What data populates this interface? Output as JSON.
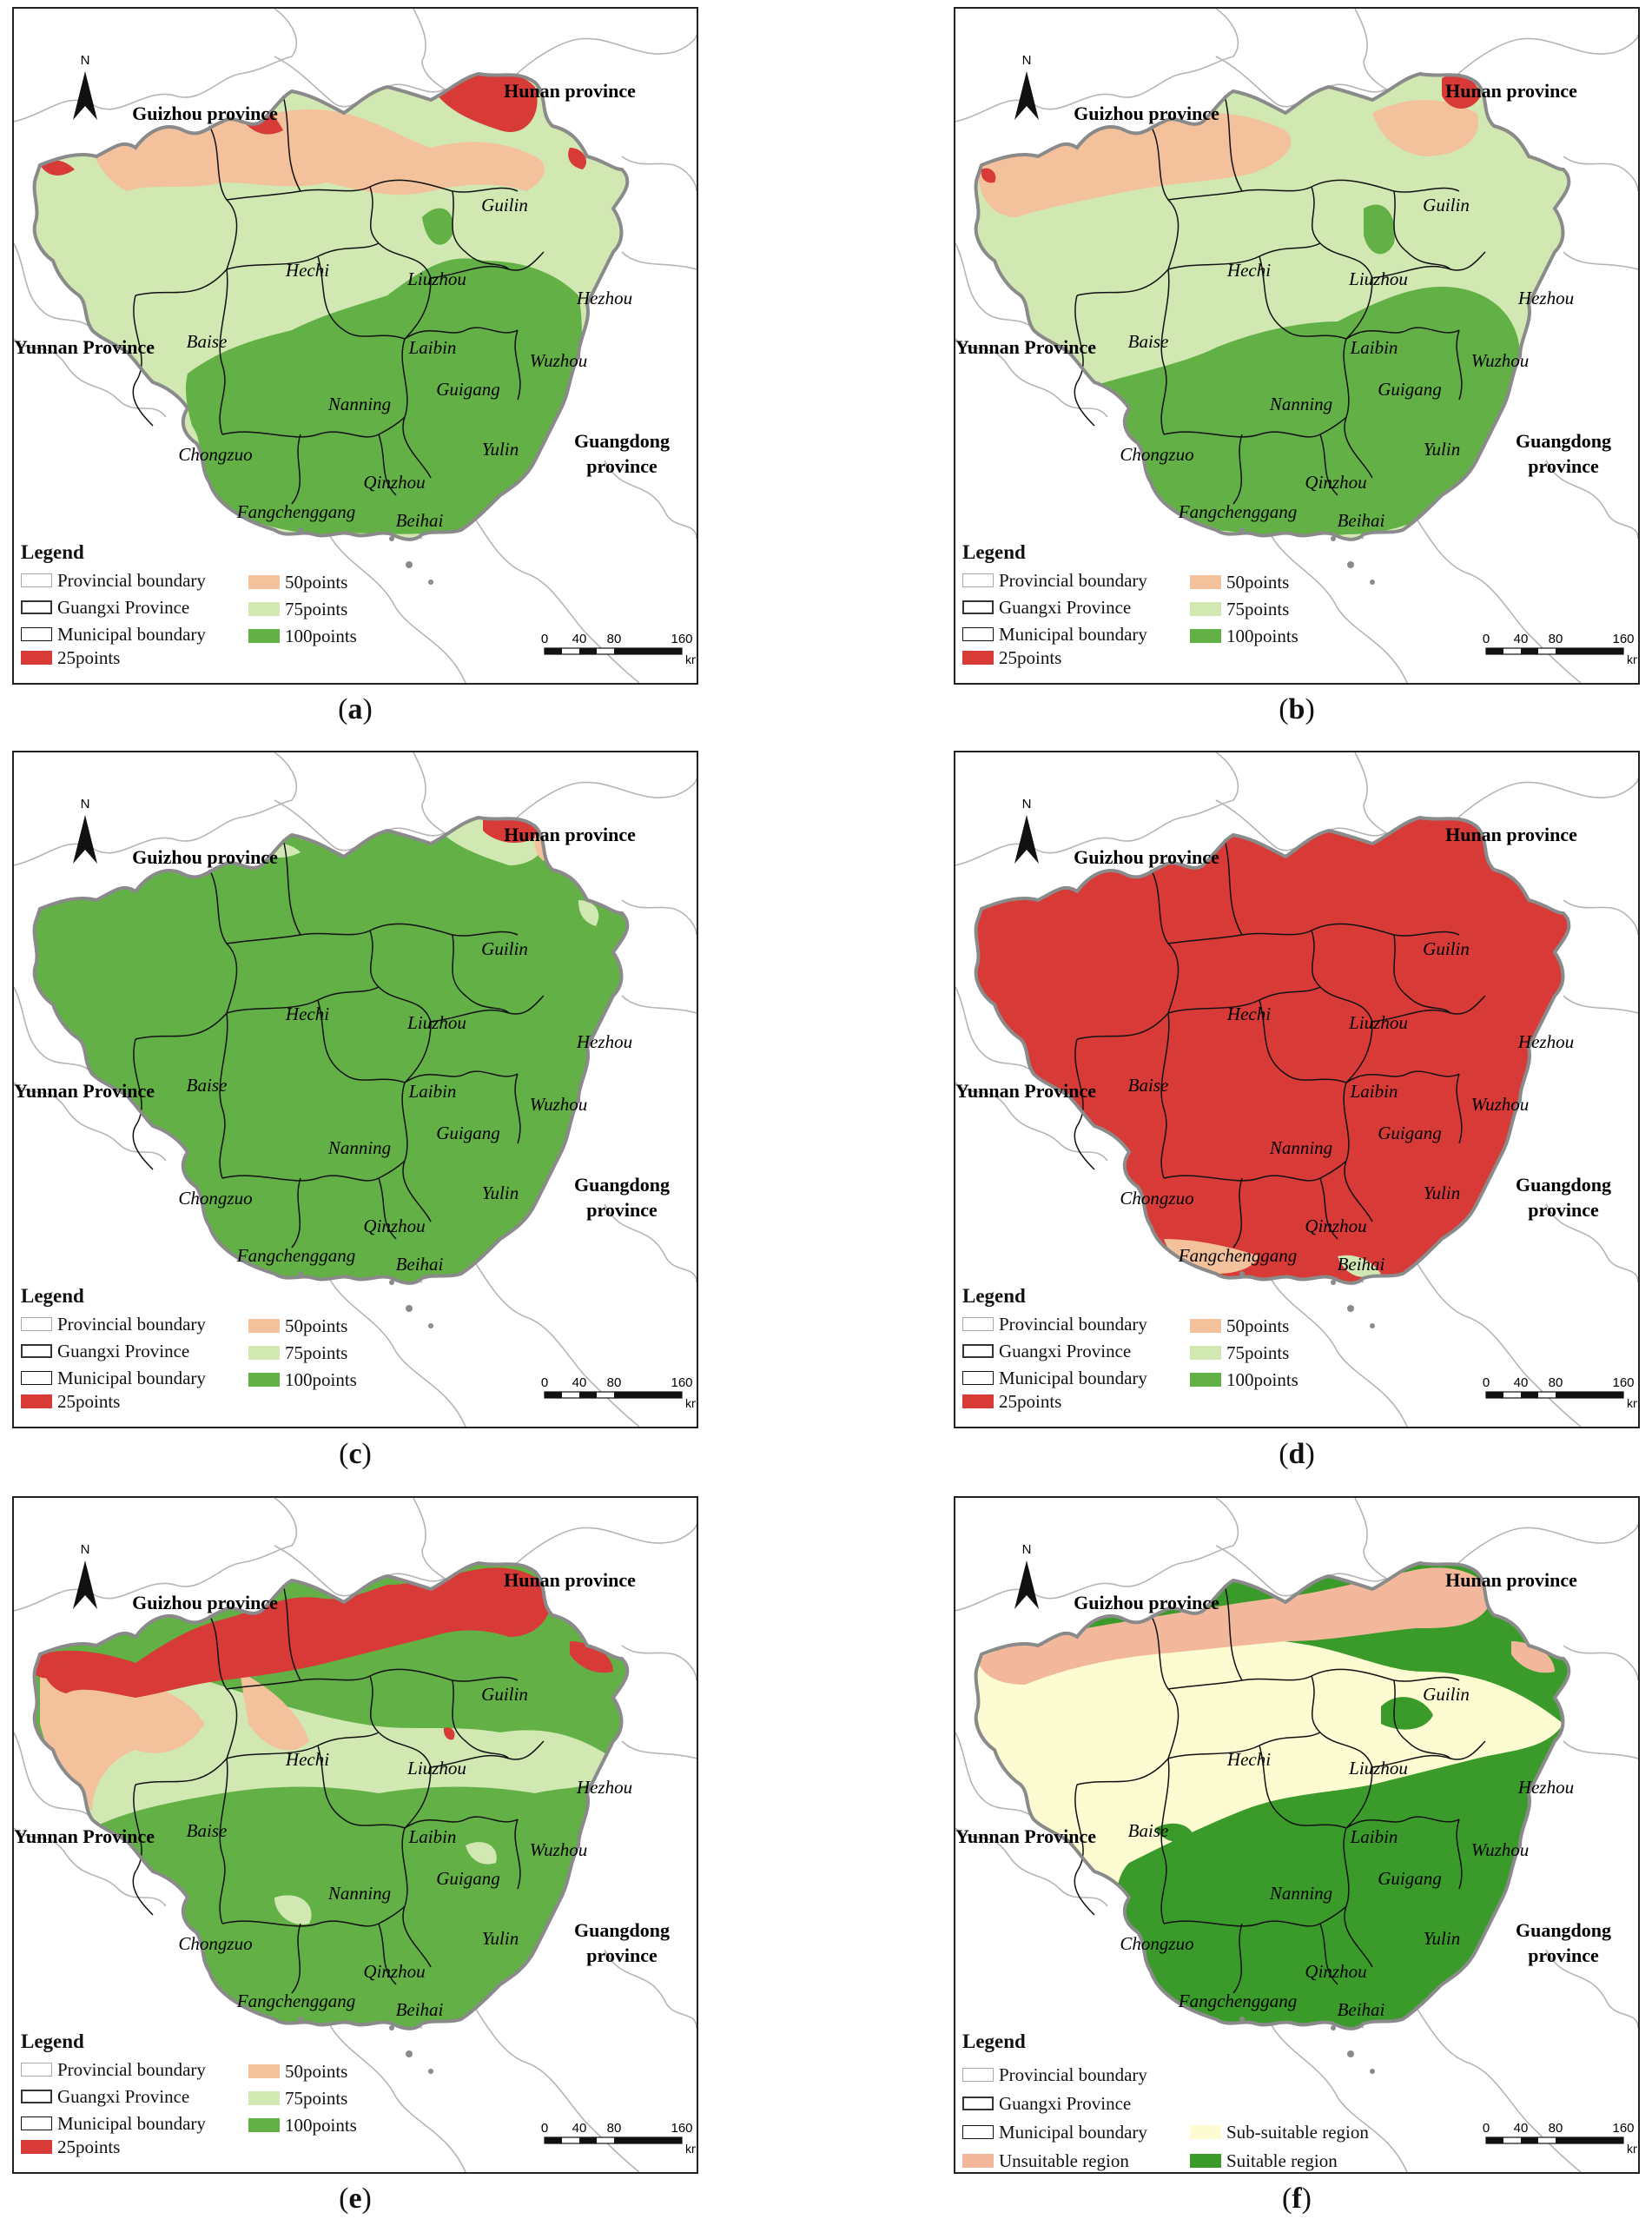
{
  "panels": [
    {
      "id": "a",
      "caption": "a",
      "variant": "a",
      "legend_title": "Legend",
      "boundary_labels": [
        "Provincial boundary",
        "Guangxi Province",
        "Municipal boundary"
      ],
      "classes": [
        {
          "label": "25points",
          "color": "#d73a37"
        },
        {
          "label": "50points",
          "color": "#f3c19b"
        },
        {
          "label": "75points",
          "color": "#d1e8b3"
        },
        {
          "label": "100points",
          "color": "#63b046"
        }
      ]
    },
    {
      "id": "b",
      "caption": "b",
      "variant": "b",
      "legend_title": "Legend",
      "boundary_labels": [
        "Provincial boundary",
        "Guangxi Province",
        "Municipal boundary"
      ],
      "classes": [
        {
          "label": "25points",
          "color": "#d73a37"
        },
        {
          "label": "50points",
          "color": "#f3c19b"
        },
        {
          "label": "75points",
          "color": "#d1e8b3"
        },
        {
          "label": "100points",
          "color": "#63b046"
        }
      ]
    },
    {
      "id": "c",
      "caption": "c",
      "variant": "c",
      "legend_title": "Legend",
      "boundary_labels": [
        "Provincial boundary",
        "Guangxi Province",
        "Municipal boundary"
      ],
      "classes": [
        {
          "label": "25points",
          "color": "#d73a37"
        },
        {
          "label": "50points",
          "color": "#f3c19b"
        },
        {
          "label": "75points",
          "color": "#d1e8b3"
        },
        {
          "label": "100points",
          "color": "#63b046"
        }
      ]
    },
    {
      "id": "d",
      "caption": "d",
      "variant": "d",
      "legend_title": "Legend",
      "boundary_labels": [
        "Provincial boundary",
        "Guangxi Province",
        "Municipal boundary"
      ],
      "classes": [
        {
          "label": "25points",
          "color": "#d73a37"
        },
        {
          "label": "50points",
          "color": "#f3c19b"
        },
        {
          "label": "75points",
          "color": "#d1e8b3"
        },
        {
          "label": "100points",
          "color": "#63b046"
        }
      ]
    },
    {
      "id": "e",
      "caption": "e",
      "variant": "e",
      "legend_title": "Legend",
      "boundary_labels": [
        "Provincial boundary",
        "Guangxi Province",
        "Municipal boundary"
      ],
      "classes": [
        {
          "label": "25points",
          "color": "#d73a37"
        },
        {
          "label": "50points",
          "color": "#f3c19b"
        },
        {
          "label": "75points",
          "color": "#d1e8b3"
        },
        {
          "label": "100points",
          "color": "#63b046"
        }
      ]
    },
    {
      "id": "f",
      "caption": "f",
      "variant": "f",
      "legend_title": "Legend",
      "boundary_labels": [
        "Provincial boundary",
        "Guangxi Province",
        "Municipal boundary"
      ],
      "classes": [
        {
          "label": "Unsuitable region",
          "color": "#f3b89b"
        },
        {
          "label": "Sub-suitable region",
          "color": "#fdfbd2"
        },
        {
          "label": "Suitable region",
          "color": "#3a9a2a"
        }
      ]
    }
  ],
  "map_labels": {
    "provinces": {
      "guizhou": "Guizhou province",
      "hunan": "Hunan province",
      "yunnan": "Yunnan Province",
      "guangdong": "Guangdong",
      "guangdong2": "province"
    },
    "cities": {
      "guilin": "Guilin",
      "hechi": "Hechi",
      "liuzhou": "Liuzhou",
      "hezhou": "Hezhou",
      "baise": "Baise",
      "laibin": "Laibin",
      "wuzhou": "Wuzhou",
      "guigang": "Guigang",
      "nanning": "Nanning",
      "yulin": "Yulin",
      "chongzuo": "Chongzuo",
      "qinzhou": "Qinzhou",
      "fangchenggang": "Fangchenggang",
      "beihai": "Beihai"
    }
  },
  "north_label": "N",
  "scale": {
    "ticks": [
      "0",
      "40",
      "80",
      "160"
    ],
    "unit": "km"
  },
  "colors": {
    "red": "#d73a37",
    "peach": "#f3c19b",
    "lightgreen": "#d1e8b3",
    "green": "#63b046",
    "darkgreen": "#3a9a2a",
    "cream": "#fdfbd2",
    "unsuitable": "#f3b89b"
  }
}
